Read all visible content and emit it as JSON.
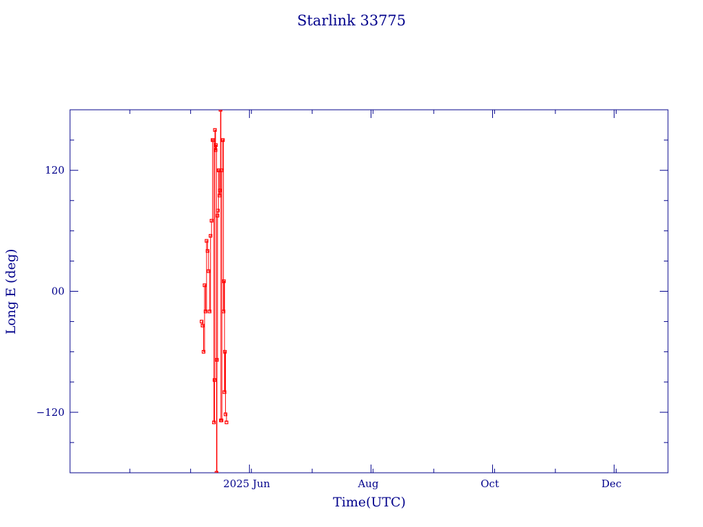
{
  "chart_data": {
    "type": "line",
    "title": "Starlink 33775",
    "xlabel": "Time(UTC)",
    "ylabel": "Long E (deg)",
    "ylim": [
      -180,
      180
    ],
    "xlim": [
      -90,
      210
    ],
    "y_ticks": [
      {
        "value": 120,
        "label": "120"
      },
      {
        "value": 0,
        "label": "00"
      },
      {
        "value": -120,
        "label": "−120"
      }
    ],
    "x_ticks": [
      {
        "value": 0,
        "label": "2025 Jun"
      },
      {
        "value": 61,
        "label": "Aug"
      },
      {
        "value": 122,
        "label": "Oct"
      },
      {
        "value": 183,
        "label": "Dec"
      }
    ],
    "series": [
      {
        "color": "#ff0000",
        "x": [
          -24,
          -23.5,
          -23,
          -22.5,
          -22,
          -21.5,
          -21,
          -20.5,
          -20,
          -19.5,
          -19,
          -18.5,
          -18,
          -17.8,
          -17.5,
          -17.3,
          -17,
          -16.8,
          -16.5,
          -16.3,
          -16,
          -15.8,
          -15.5,
          -15.3,
          -15,
          -14.8,
          -14.5,
          -14.3,
          -14,
          -13.8,
          -13.5,
          -13.3,
          -13,
          -12.8,
          -12.5,
          -12.3,
          -12,
          -11.5
        ],
        "y": [
          -30,
          -34,
          -60,
          6,
          -20,
          50,
          40,
          20,
          -20,
          55,
          70,
          150,
          150,
          -130,
          -88,
          160,
          140,
          145,
          -180,
          -68,
          75,
          80,
          120,
          120,
          95,
          100,
          180,
          -128,
          -128,
          120,
          150,
          150,
          -20,
          10,
          -100,
          -60,
          -122,
          -130
        ]
      }
    ]
  }
}
